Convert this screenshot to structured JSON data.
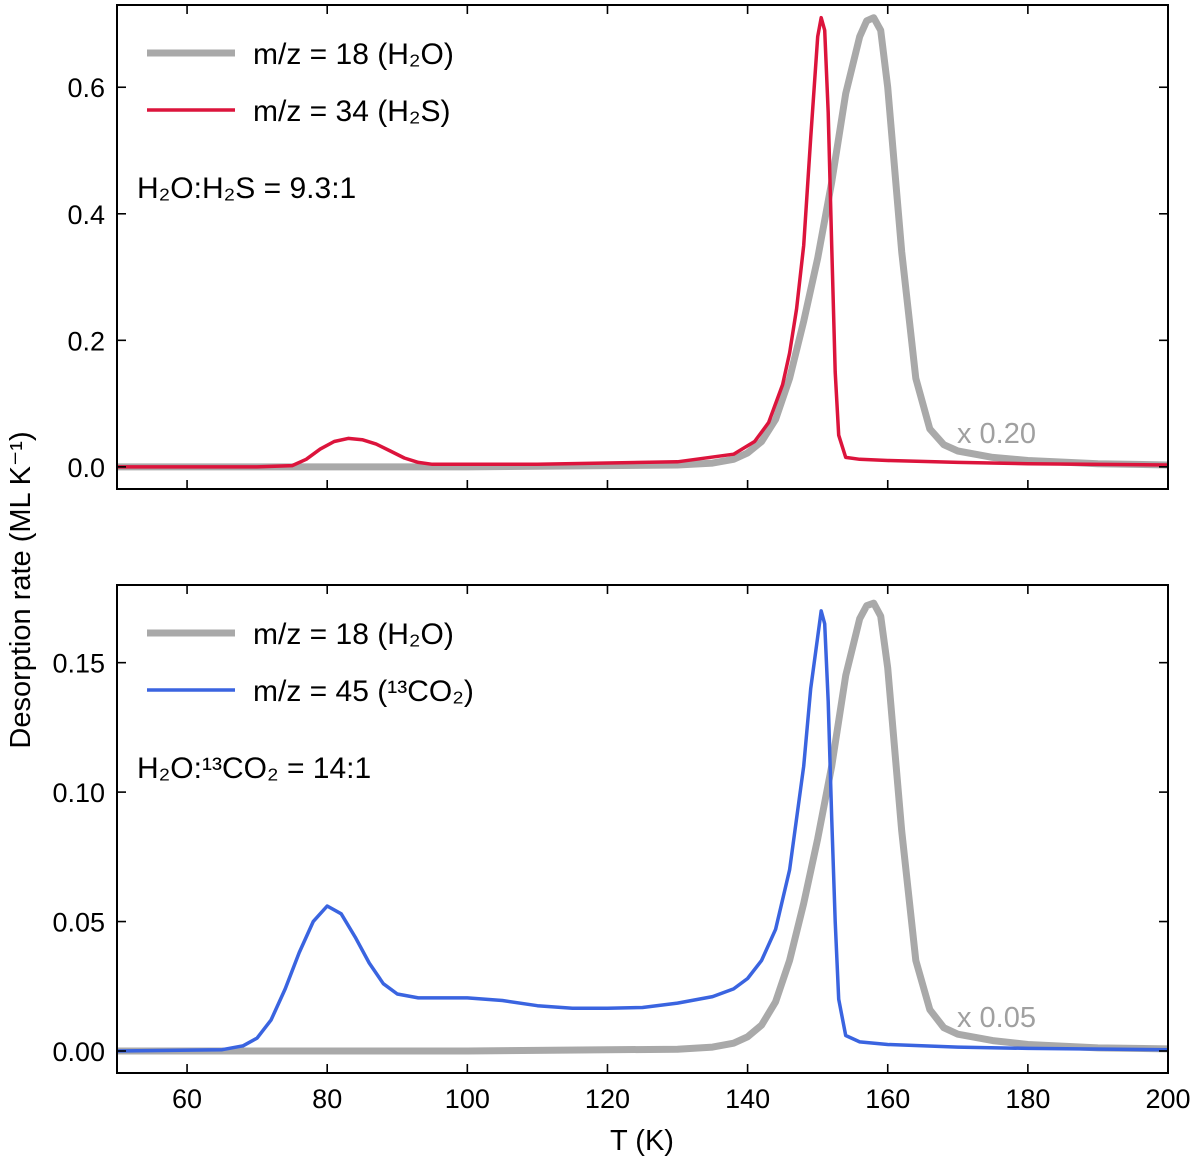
{
  "chart_data": [
    {
      "type": "line",
      "panel": "top",
      "xlim": [
        50,
        200
      ],
      "ylim": [
        -0.035,
        0.73
      ],
      "xticks": [
        60,
        80,
        100,
        120,
        140,
        160,
        180,
        200
      ],
      "yticks": [
        0.0,
        0.2,
        0.4,
        0.6
      ],
      "ytick_labels": [
        "0.0",
        "0.2",
        "0.4",
        "0.6"
      ],
      "show_xtick_labels": false,
      "series": [
        {
          "name": "m/z = 18 (H2O)",
          "color": "#a9a9a9",
          "x": [
            50,
            100,
            130,
            135,
            138,
            140,
            142,
            144,
            146,
            148,
            150,
            152,
            154,
            156,
            157,
            158,
            159,
            160,
            162,
            164,
            166,
            168,
            170,
            175,
            180,
            190,
            200
          ],
          "y": [
            0.0,
            0.0,
            0.003,
            0.006,
            0.012,
            0.022,
            0.04,
            0.075,
            0.14,
            0.23,
            0.33,
            0.45,
            0.59,
            0.68,
            0.705,
            0.71,
            0.69,
            0.6,
            0.34,
            0.14,
            0.06,
            0.035,
            0.025,
            0.015,
            0.01,
            0.005,
            0.003
          ]
        },
        {
          "name": "m/z = 34 (H2S)",
          "color": "#dc143c",
          "x": [
            50,
            70,
            75,
            77,
            79,
            81,
            83,
            85,
            87,
            89,
            91,
            93,
            95,
            110,
            130,
            138,
            141,
            143,
            145,
            146,
            147,
            148,
            149,
            150,
            150.5,
            151,
            151.5,
            152,
            152.5,
            153,
            154,
            156,
            160,
            170,
            180,
            200
          ],
          "y": [
            0.0,
            0.0,
            0.002,
            0.012,
            0.028,
            0.04,
            0.045,
            0.043,
            0.036,
            0.025,
            0.014,
            0.007,
            0.004,
            0.004,
            0.008,
            0.02,
            0.04,
            0.07,
            0.13,
            0.18,
            0.25,
            0.35,
            0.52,
            0.68,
            0.71,
            0.69,
            0.56,
            0.35,
            0.15,
            0.05,
            0.015,
            0.012,
            0.01,
            0.007,
            0.005,
            0.003
          ]
        }
      ],
      "legend": [
        "m/z = 18 (H₂O)",
        "m/z = 34 (H₂S)"
      ],
      "annotation": "H₂O:H₂S = 9.3:1",
      "scale_note": "x 0.20"
    },
    {
      "type": "line",
      "panel": "bottom",
      "xlim": [
        50,
        200
      ],
      "ylim": [
        -0.0085,
        0.18
      ],
      "xticks": [
        60,
        80,
        100,
        120,
        140,
        160,
        180,
        200
      ],
      "xtick_labels": [
        "60",
        "80",
        "100",
        "120",
        "140",
        "160",
        "180",
        "200"
      ],
      "yticks": [
        0.0,
        0.05,
        0.1,
        0.15
      ],
      "ytick_labels": [
        "0.00",
        "0.05",
        "0.10",
        "0.15"
      ],
      "show_xtick_labels": true,
      "series": [
        {
          "name": "m/z = 18 (H2O)",
          "color": "#a9a9a9",
          "x": [
            50,
            100,
            130,
            135,
            138,
            140,
            142,
            144,
            146,
            148,
            150,
            152,
            154,
            156,
            157,
            158,
            159,
            160,
            162,
            164,
            166,
            168,
            170,
            175,
            180,
            190,
            200
          ],
          "y": [
            0.0,
            0.0,
            0.0007,
            0.0015,
            0.003,
            0.0055,
            0.01,
            0.019,
            0.035,
            0.057,
            0.082,
            0.11,
            0.145,
            0.167,
            0.172,
            0.173,
            0.168,
            0.148,
            0.085,
            0.035,
            0.016,
            0.009,
            0.0065,
            0.004,
            0.0025,
            0.0012,
            0.0008
          ]
        },
        {
          "name": "m/z = 45 (13CO2)",
          "color": "#3a64e0",
          "x": [
            50,
            65,
            68,
            70,
            72,
            74,
            76,
            78,
            80,
            82,
            84,
            86,
            88,
            90,
            93,
            96,
            100,
            105,
            110,
            115,
            120,
            125,
            130,
            135,
            138,
            140,
            142,
            144,
            146,
            148,
            149,
            150,
            150.5,
            151,
            151.5,
            152,
            152.5,
            153,
            154,
            156,
            160,
            170,
            180,
            200
          ],
          "y": [
            0.0,
            0.0005,
            0.002,
            0.005,
            0.012,
            0.024,
            0.038,
            0.05,
            0.056,
            0.053,
            0.044,
            0.034,
            0.026,
            0.022,
            0.0205,
            0.0205,
            0.0205,
            0.0195,
            0.0175,
            0.0165,
            0.0165,
            0.0168,
            0.0185,
            0.021,
            0.024,
            0.028,
            0.035,
            0.047,
            0.07,
            0.11,
            0.14,
            0.16,
            0.17,
            0.165,
            0.135,
            0.09,
            0.05,
            0.02,
            0.006,
            0.0035,
            0.0025,
            0.0015,
            0.001,
            0.0005
          ]
        }
      ],
      "legend": [
        "m/z = 18 (H₂O)",
        "m/z = 45 (¹³CO₂)"
      ],
      "annotation": "H₂O:¹³CO₂ = 14:1",
      "scale_note": "x 0.05"
    }
  ],
  "labels": {
    "xlabel": "T (K)",
    "ylabel": "Desorption rate (ML K⁻¹)"
  }
}
